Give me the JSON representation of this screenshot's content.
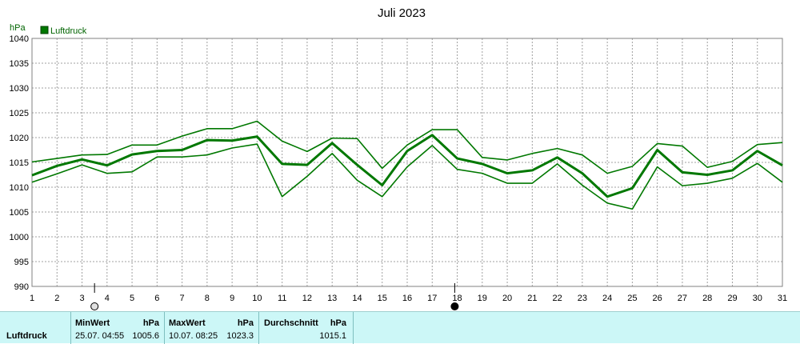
{
  "chart_data": {
    "type": "line",
    "title": "Juli 2023",
    "ylabel": "hPa",
    "ylim": [
      990,
      1040
    ],
    "yticks": [
      990,
      995,
      1000,
      1005,
      1010,
      1015,
      1020,
      1025,
      1030,
      1035,
      1040
    ],
    "xlim": [
      1,
      31
    ],
    "x": [
      1,
      2,
      3,
      4,
      5,
      6,
      7,
      8,
      9,
      10,
      11,
      12,
      13,
      14,
      15,
      16,
      17,
      18,
      19,
      20,
      21,
      22,
      23,
      24,
      25,
      26,
      27,
      28,
      29,
      30,
      31
    ],
    "grid": true,
    "legend": {
      "position": "top-left",
      "entries": [
        "Luftdruck"
      ]
    },
    "series": [
      {
        "name": "Luftdruck",
        "role": "max",
        "values": [
          1015.1,
          1015.8,
          1016.5,
          1016.6,
          1018.5,
          1018.5,
          1020.3,
          1021.8,
          1021.8,
          1023.3,
          1019.3,
          1017.2,
          1019.9,
          1019.8,
          1013.8,
          1018.5,
          1021.6,
          1021.6,
          1016.0,
          1015.5,
          1016.8,
          1017.8,
          1016.5,
          1012.8,
          1014.2,
          1018.8,
          1018.3,
          1014.0,
          1015.2,
          1018.6,
          1019.0
        ]
      },
      {
        "name": "Luftdruck",
        "role": "mean",
        "values": [
          1012.4,
          1014.3,
          1015.6,
          1014.4,
          1016.6,
          1017.3,
          1017.5,
          1019.5,
          1019.4,
          1020.2,
          1014.7,
          1014.5,
          1018.9,
          1014.5,
          1010.4,
          1017.3,
          1020.5,
          1015.8,
          1014.7,
          1012.8,
          1013.4,
          1016.0,
          1012.8,
          1008.1,
          1009.8,
          1017.5,
          1013.0,
          1012.5,
          1013.4,
          1017.3,
          1014.4
        ]
      },
      {
        "name": "Luftdruck",
        "role": "min",
        "values": [
          1011.0,
          1012.7,
          1014.5,
          1012.8,
          1013.1,
          1016.1,
          1016.1,
          1016.5,
          1017.9,
          1018.7,
          1008.1,
          1012.2,
          1016.8,
          1011.4,
          1008.1,
          1014.1,
          1018.4,
          1013.6,
          1012.8,
          1010.8,
          1010.8,
          1014.7,
          1010.4,
          1006.8,
          1005.6,
          1014.1,
          1010.3,
          1010.8,
          1011.8,
          1014.8,
          1011.0
        ]
      }
    ],
    "color": "#007800"
  },
  "markers": {
    "left_day_index": "3.5",
    "right_day_index": "17.9"
  },
  "stats": {
    "row_label": "Luftdruck",
    "min": {
      "header": "MinWert",
      "unit": "hPa",
      "datetime": "25.07.  04:55",
      "value": "1005.6"
    },
    "max": {
      "header": "MaxWert",
      "unit": "hPa",
      "datetime": "10.07.  08:25",
      "value": "1023.3"
    },
    "avg": {
      "header": "Durchschnitt",
      "unit": "hPa",
      "value": "1015.1"
    }
  }
}
